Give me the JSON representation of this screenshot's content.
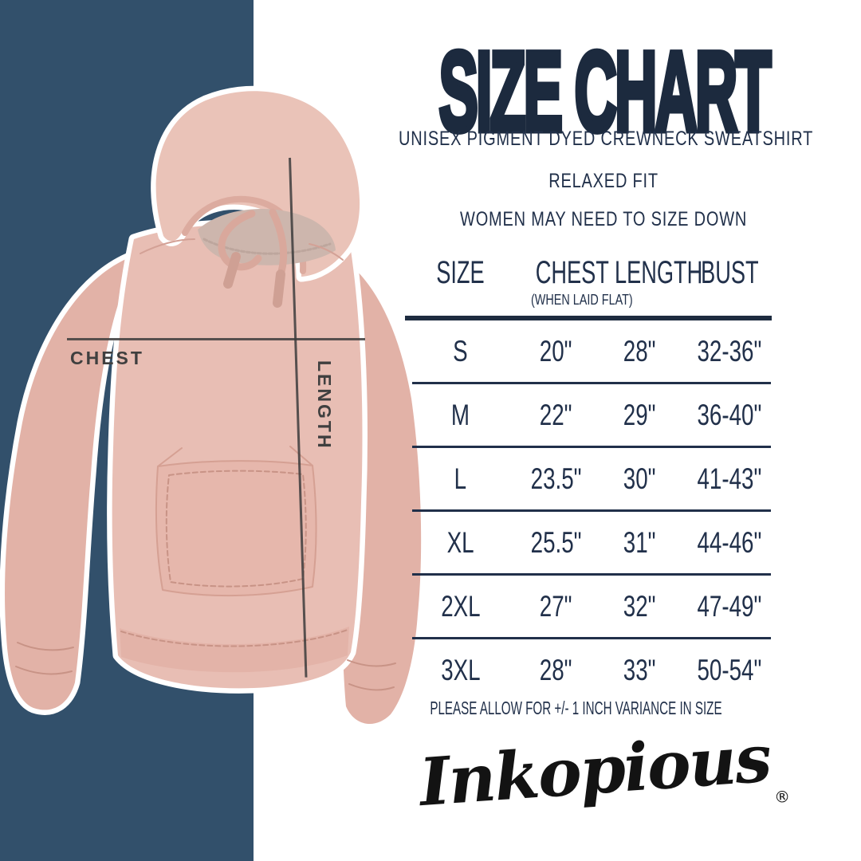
{
  "chart_data": {
    "type": "table",
    "title": "SIZE CHART",
    "columns": [
      "SIZE",
      "CHEST (WHEN LAID FLAT)",
      "LENGTH",
      "BUST"
    ],
    "rows": [
      [
        "S",
        "20\"",
        "28\"",
        "32-36\""
      ],
      [
        "M",
        "22\"",
        "29\"",
        "36-40\""
      ],
      [
        "L",
        "23.5\"",
        "30\"",
        "41-43\""
      ],
      [
        "XL",
        "25.5\"",
        "31\"",
        "44-46\""
      ],
      [
        "2XL",
        "27\"",
        "32\"",
        "47-49\""
      ],
      [
        "3XL",
        "28\"",
        "33\"",
        "50-54\""
      ]
    ]
  },
  "header": {
    "title": "SIZE CHART",
    "subtitle1": "UNISEX PIGMENT DYED CREWNECK SWEATSHIRT",
    "subtitle2": "RELAXED FIT",
    "subtitle3": "WOMEN MAY NEED TO SIZE DOWN"
  },
  "measurements": {
    "chest_label": "CHEST",
    "length_label": "LENGTH"
  },
  "table": {
    "columns": [
      "SIZE",
      "CHEST",
      "LENGTH",
      "BUST"
    ],
    "chest_subnote": "(WHEN LAID FLAT)"
  },
  "footer": {
    "variance_note": "PLEASE ALLOW FOR +/- 1 INCH VARIANCE IN SIZE",
    "brand": "Inkopious",
    "registered_mark": "®"
  },
  "colors": {
    "band_navy": "#32506b",
    "headline_navy": "#1c2a3e",
    "table_navy": "#21304a",
    "hoodie_pink": "#e8beb4",
    "measure_line_gray": "#3c3c3c",
    "logo_black": "#131313"
  }
}
